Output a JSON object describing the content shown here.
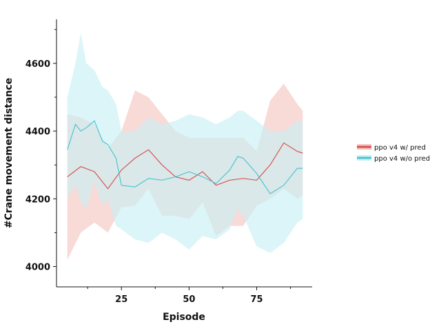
{
  "chart_data": {
    "type": "line",
    "xlabel": "Episode",
    "ylabel": "#Crane movement distance",
    "xlim": [
      1.0,
      95.5
    ],
    "ylim": [
      3940,
      4730
    ],
    "xticks": [
      25,
      50,
      75
    ],
    "yticks": [
      4000,
      4200,
      4400,
      4600
    ],
    "x_tick_labels": [
      "25",
      "50",
      "75"
    ],
    "y_tick_labels": [
      "4000",
      "4200",
      "4400",
      "4600"
    ],
    "grid": false,
    "legend_position": "right",
    "series": [
      {
        "name": "ppo v4 w/ pred",
        "color": "#d9534f",
        "band_color": "#f5c6c2",
        "x": [
          5,
          10,
          15,
          20,
          25,
          30,
          35,
          40,
          45,
          50,
          55,
          60,
          65,
          70,
          75,
          80,
          85,
          90,
          92
        ],
        "y": [
          4265,
          4295,
          4280,
          4230,
          4285,
          4320,
          4345,
          4300,
          4265,
          4255,
          4280,
          4240,
          4255,
          4260,
          4255,
          4300,
          4365,
          4340,
          4335
        ],
        "lower": [
          4020,
          4100,
          4130,
          4100,
          4175,
          4180,
          4230,
          4150,
          4150,
          4140,
          4190,
          4090,
          4120,
          4120,
          4180,
          4200,
          4230,
          4200,
          4210
        ],
        "upper": [
          4450,
          4440,
          4420,
          4350,
          4400,
          4520,
          4500,
          4450,
          4400,
          4380,
          4380,
          4380,
          4380,
          4380,
          4340,
          4490,
          4540,
          4480,
          4460
        ]
      },
      {
        "name": "ppo v4 w/o pred",
        "color": "#4fc5d0",
        "band_color": "#c9f0f4",
        "x": [
          5,
          8,
          10,
          12,
          15,
          18,
          20,
          23,
          25,
          30,
          35,
          40,
          45,
          50,
          55,
          60,
          65,
          68,
          70,
          75,
          80,
          85,
          90,
          92
        ],
        "y": [
          4345,
          4420,
          4400,
          4410,
          4430,
          4370,
          4360,
          4320,
          4240,
          4235,
          4260,
          4255,
          4265,
          4280,
          4265,
          4245,
          4285,
          4325,
          4320,
          4275,
          4215,
          4240,
          4290,
          4290
        ],
        "lower": [
          4200,
          4240,
          4190,
          4170,
          4250,
          4180,
          4200,
          4120,
          4110,
          4080,
          4070,
          4100,
          4080,
          4050,
          4090,
          4080,
          4110,
          4170,
          4150,
          4060,
          4040,
          4070,
          4130,
          4140
        ],
        "upper": [
          4500,
          4600,
          4690,
          4600,
          4580,
          4530,
          4520,
          4480,
          4400,
          4400,
          4440,
          4420,
          4430,
          4450,
          4440,
          4420,
          4440,
          4460,
          4460,
          4430,
          4400,
          4400,
          4430,
          4430
        ]
      }
    ]
  }
}
